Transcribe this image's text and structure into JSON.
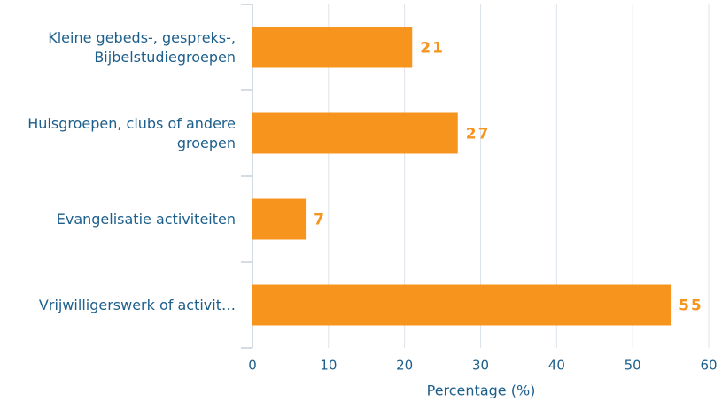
{
  "chart_data": {
    "type": "bar",
    "orientation": "horizontal",
    "categories": [
      "Kleine gebeds-, gespreks-, Bijbelstudiegroepen",
      "Huisgroepen, clubs of andere groepen",
      "Evangelisatie activiteiten",
      "Vrijwilligerswerk of activit…"
    ],
    "values": [
      21,
      27,
      7,
      55
    ],
    "color": "#f7941d",
    "xlabel": "Percentage (%)",
    "xlim": [
      0,
      60
    ],
    "xticks": [
      0,
      10,
      20,
      30,
      40,
      50,
      60
    ],
    "grid": true
  }
}
